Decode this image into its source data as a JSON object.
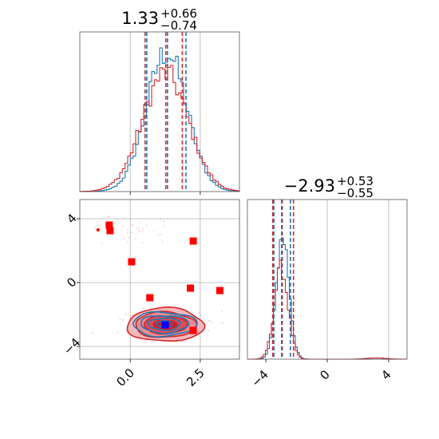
{
  "colors": {
    "blue": "#1f77b4",
    "red": "#d62728",
    "marker_red": "#ff0000",
    "marker_blue": "#0000ff",
    "grid": "#b0b0b0"
  },
  "chart_data": [
    {
      "type": "histogram",
      "panel": "p1-marginal",
      "title": {
        "median": "1.33",
        "plus": "+0.66",
        "minus": "−0.74"
      },
      "xlim": [
        -1.8,
        3.9
      ],
      "grid_x": [
        0.0,
        2.5
      ],
      "series": [
        {
          "name": "",
          "color": "blue",
          "quantiles": [
            0.59,
            1.33,
            1.99
          ]
        },
        {
          "name": "",
          "color": "red",
          "quantiles": [
            0.53,
            1.27,
            1.86
          ]
        }
      ]
    },
    {
      "type": "histogram",
      "panel": "p2-marginal",
      "title": {
        "median": "−2.93",
        "plus": "+0.53",
        "minus": "−0.55"
      },
      "xlim": [
        -5.2,
        5.2
      ],
      "xticks": [
        -4,
        0,
        4
      ],
      "xtick_labels": [
        "−4",
        "0",
        "4"
      ],
      "grid_x": [
        0,
        4
      ],
      "series": [
        {
          "name": "",
          "color": "blue",
          "quantiles": [
            -3.48,
            -2.93,
            -2.4
          ]
        },
        {
          "name": "",
          "color": "red",
          "quantiles": [
            -3.55,
            -2.97,
            -2.2
          ]
        }
      ]
    },
    {
      "type": "scatter",
      "panel": "p1-vs-p2-joint",
      "xlim": [
        -1.8,
        3.9
      ],
      "ylim": [
        -4.8,
        5.2
      ],
      "xticks": [
        0.0,
        2.5
      ],
      "xtick_labels": [
        "0.0",
        "2.5"
      ],
      "yticks": [
        4,
        0,
        -4
      ],
      "ytick_labels": [
        "4",
        "0",
        "−4"
      ],
      "contour_center": {
        "x": 1.25,
        "y": -2.65
      },
      "red_squares": [
        {
          "x": -0.75,
          "y": 3.6
        },
        {
          "x": -0.72,
          "y": 3.25
        },
        {
          "x": 0.05,
          "y": 1.3
        },
        {
          "x": 2.25,
          "y": 2.6
        },
        {
          "x": 2.15,
          "y": -0.35
        },
        {
          "x": 3.2,
          "y": -0.5
        },
        {
          "x": 0.7,
          "y": -0.95
        },
        {
          "x": 2.25,
          "y": -3.0
        }
      ],
      "blue_square": {
        "x": 1.25,
        "y": -2.65
      }
    }
  ]
}
